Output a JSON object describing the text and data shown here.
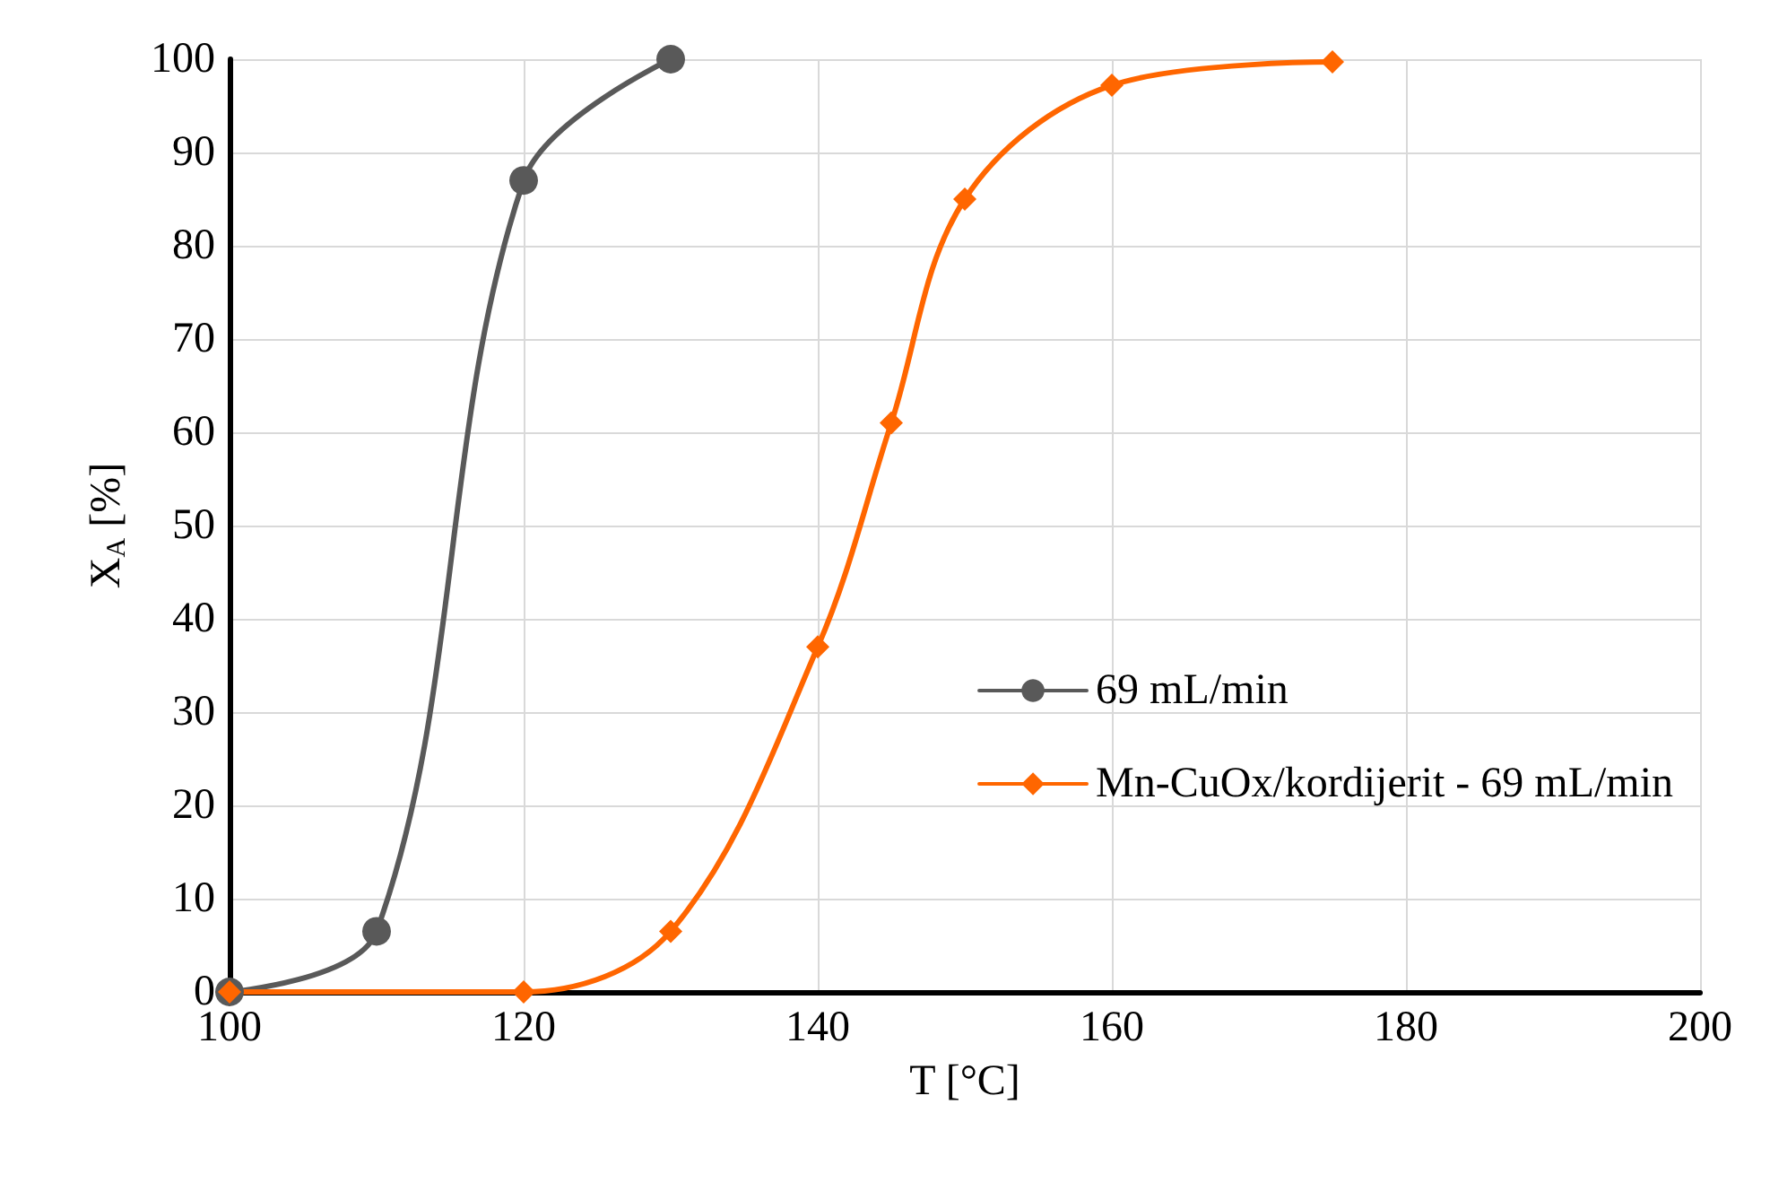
{
  "chart_data": {
    "type": "line",
    "xlabel": "T [°C]",
    "ylabel": "X$_{A}$ [%]",
    "xlim": [
      100,
      200
    ],
    "xticks": [
      100,
      120,
      140,
      160,
      180,
      200
    ],
    "ylim": [
      0,
      100
    ],
    "yticks": [
      0,
      10,
      20,
      30,
      40,
      50,
      60,
      70,
      80,
      90,
      100
    ],
    "grid": true,
    "legend": "right",
    "line_style": "solid",
    "series": [
      {
        "name": "69 mL/min",
        "color": "#595959",
        "marker": "circle",
        "x": [
          100,
          110,
          120,
          130
        ],
        "values": [
          0,
          6.5,
          87,
          100
        ]
      },
      {
        "name": "Mn-CuOx/kordijerit - 69 mL/min",
        "color": "#ff6600",
        "marker": "diamond",
        "x": [
          100,
          120,
          130,
          140,
          145,
          150,
          160,
          175
        ],
        "values": [
          0,
          0,
          6.5,
          37,
          61,
          85,
          97.2,
          99.7
        ]
      }
    ]
  }
}
